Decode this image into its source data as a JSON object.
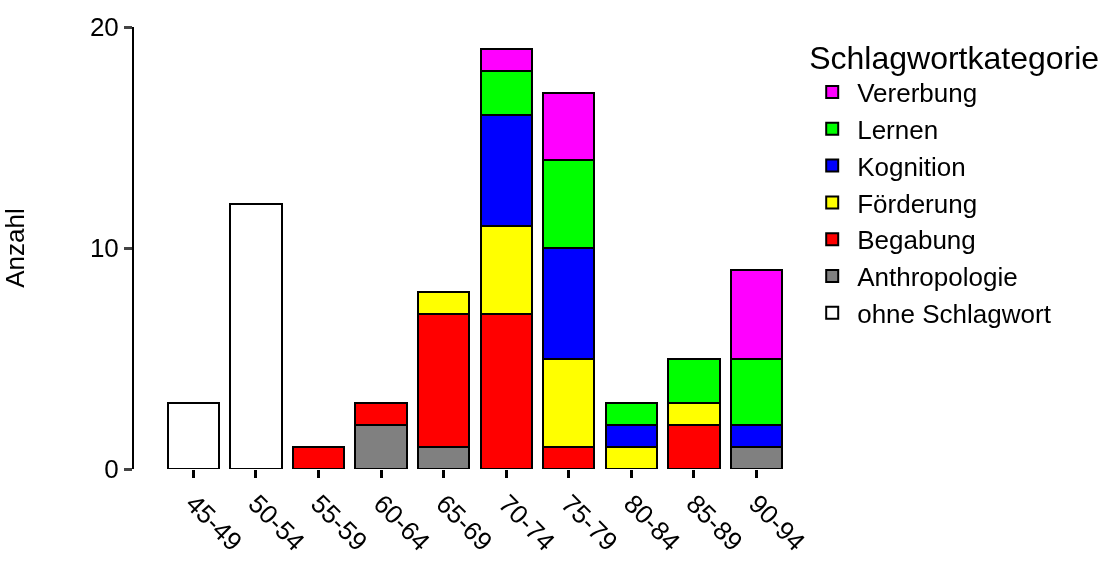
{
  "chart_data": {
    "type": "bar",
    "stacked": true,
    "ylabel": "Anzahl",
    "legend_title": "Schlagwortkategorie",
    "legend": "right",
    "categories": [
      "45-49",
      "50-54",
      "55-59",
      "60-64",
      "65-69",
      "70-74",
      "75-79",
      "80-84",
      "85-89",
      "90-94"
    ],
    "ylim": [
      0,
      20
    ],
    "yticks": [
      0,
      10,
      20
    ],
    "series": [
      {
        "name": "ohne Schlagwort",
        "color": "#ffffff",
        "values": [
          3,
          12,
          null,
          null,
          null,
          null,
          null,
          null,
          null,
          null
        ]
      },
      {
        "name": "Anthropologie",
        "color": "#808080",
        "values": [
          null,
          null,
          null,
          2,
          1,
          null,
          null,
          null,
          null,
          1
        ]
      },
      {
        "name": "Begabung",
        "color": "#ff0000",
        "values": [
          null,
          null,
          1,
          1,
          6,
          7,
          1,
          null,
          2,
          null
        ]
      },
      {
        "name": "Förderung",
        "color": "#ffff00",
        "values": [
          null,
          null,
          null,
          null,
          1,
          4,
          4,
          1,
          1,
          null
        ]
      },
      {
        "name": "Kognition",
        "color": "#0000ff",
        "values": [
          null,
          null,
          null,
          null,
          null,
          5,
          5,
          1,
          null,
          1
        ]
      },
      {
        "name": "Lernen",
        "color": "#00ff00",
        "values": [
          null,
          null,
          null,
          null,
          null,
          2,
          4,
          1,
          2,
          3
        ]
      },
      {
        "name": "Vererbung",
        "color": "#ff00ff",
        "values": [
          null,
          null,
          null,
          null,
          null,
          1,
          3,
          null,
          null,
          4
        ]
      }
    ]
  }
}
